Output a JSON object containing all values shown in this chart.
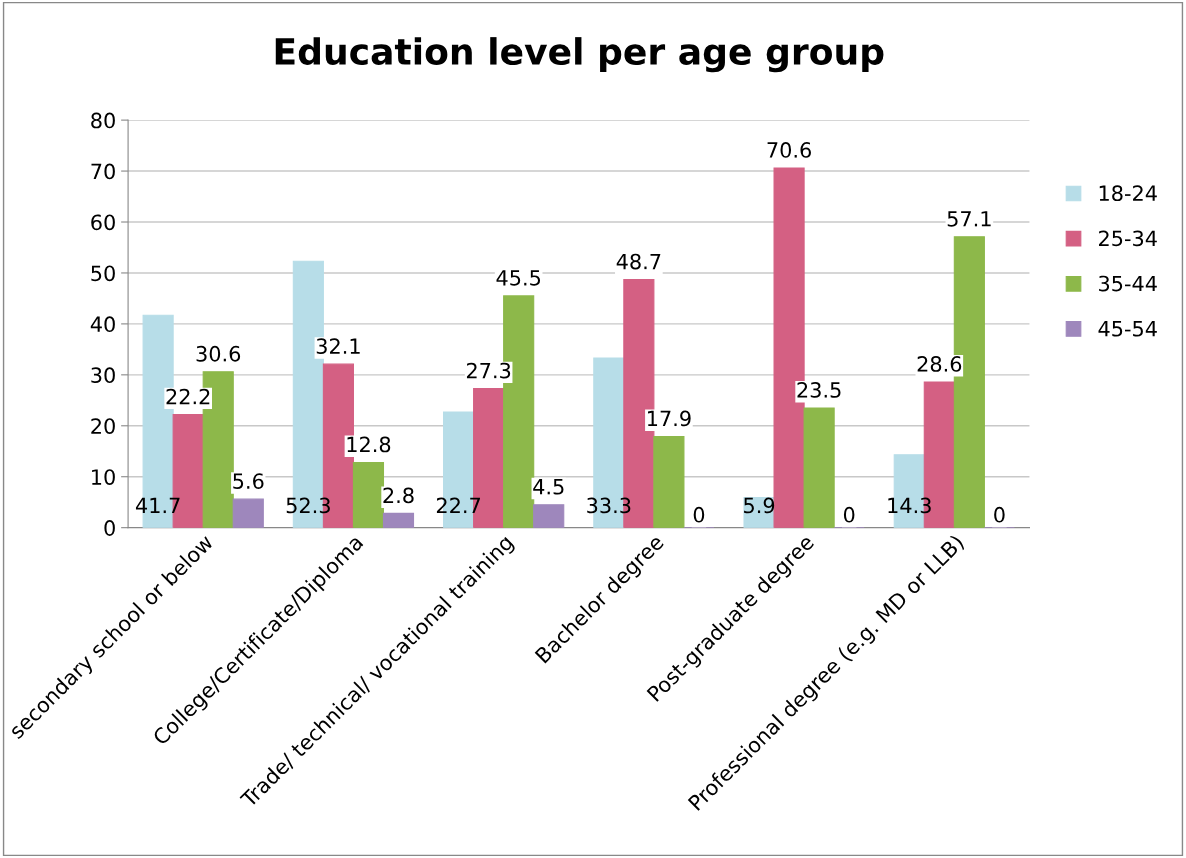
{
  "chart_data": {
    "type": "bar",
    "title": "Education level per age group",
    "categories": [
      "secondary school or below",
      "College/Certificate/Diploma",
      "Trade/ technical/ vocational training",
      "Bachelor degree",
      "Post-graduate degree",
      "Professional degree (e.g. MD or LLB)"
    ],
    "series": [
      {
        "name": "18-24",
        "color": "#b7dde8",
        "values": [
          41.7,
          52.3,
          22.7,
          33.3,
          5.9,
          14.3
        ]
      },
      {
        "name": "25-34",
        "color": "#d46083",
        "values": [
          22.2,
          32.1,
          27.3,
          48.7,
          70.6,
          28.6
        ]
      },
      {
        "name": "35-44",
        "color": "#8db84a",
        "values": [
          30.6,
          12.8,
          45.5,
          17.9,
          23.5,
          57.1
        ]
      },
      {
        "name": "45-54",
        "color": "#9e87bc",
        "values": [
          5.6,
          2.8,
          4.5,
          0,
          0,
          0
        ]
      }
    ],
    "ylim": [
      0,
      80
    ],
    "yticks": [
      0,
      10,
      20,
      30,
      40,
      50,
      60,
      70,
      80
    ],
    "grid": "y",
    "legend": "right",
    "data_labels": true
  }
}
